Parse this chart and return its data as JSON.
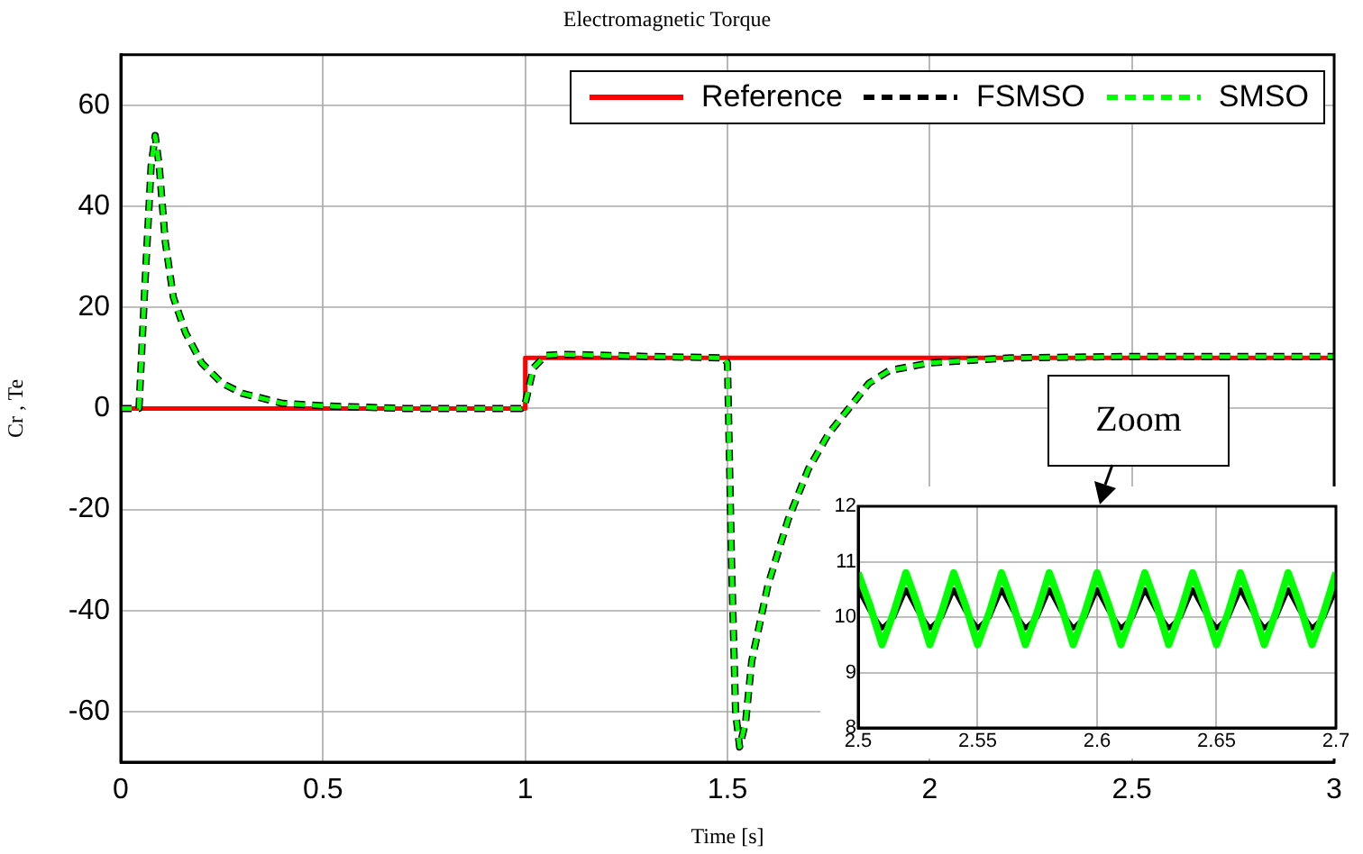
{
  "chart_data": [
    {
      "type": "line",
      "title": "Electromagnetic Torque",
      "xlabel": "Time [s]",
      "ylabel": "Cr , Te",
      "xlim": [
        0,
        3
      ],
      "xticks": [
        0,
        0.5,
        1,
        1.5,
        2,
        2.5,
        3
      ],
      "ylim": [
        -70,
        70
      ],
      "yticks": [
        -60,
        -40,
        -20,
        0,
        20,
        40,
        60
      ],
      "grid": true,
      "legend": "top right",
      "annotations": [
        "Zoom"
      ],
      "series": [
        {
          "name": "Reference",
          "color": "#ff0000",
          "line_style": "solid",
          "x": [
            0,
            1,
            1,
            1.5,
            1.5,
            3
          ],
          "values": [
            0,
            0,
            10,
            10,
            10,
            10
          ]
        },
        {
          "name": "FSMSO",
          "color": "#000000",
          "line_style": "dashed",
          "x": [
            0,
            0.045,
            0.06,
            0.075,
            0.085,
            0.095,
            0.11,
            0.13,
            0.16,
            0.2,
            0.25,
            0.3,
            0.4,
            0.5,
            0.7,
            0.99,
            1.0,
            1.02,
            1.05,
            1.1,
            1.3,
            1.49,
            1.5,
            1.51,
            1.52,
            1.53,
            1.545,
            1.56,
            1.6,
            1.65,
            1.7,
            1.75,
            1.8,
            1.85,
            1.9,
            2.0,
            2.2,
            2.5,
            3
          ],
          "values": [
            0,
            0,
            25,
            48,
            54,
            48,
            33,
            22,
            15,
            9,
            5,
            3,
            1,
            0.5,
            0,
            0,
            1,
            8,
            10.5,
            10.7,
            10.3,
            10,
            9,
            -30,
            -60,
            -67,
            -62,
            -50,
            -35,
            -22,
            -12,
            -5,
            0,
            5,
            7.5,
            9,
            10,
            10.3,
            10.3
          ]
        },
        {
          "name": "SMSO",
          "color": "#00ff00",
          "line_style": "dashed",
          "x": [
            0,
            0.045,
            0.06,
            0.075,
            0.085,
            0.095,
            0.11,
            0.13,
            0.16,
            0.2,
            0.25,
            0.3,
            0.4,
            0.5,
            0.7,
            0.99,
            1.0,
            1.02,
            1.05,
            1.1,
            1.3,
            1.49,
            1.5,
            1.51,
            1.52,
            1.53,
            1.545,
            1.56,
            1.6,
            1.65,
            1.7,
            1.75,
            1.8,
            1.85,
            1.9,
            2.0,
            2.2,
            2.5,
            3
          ],
          "values": [
            0,
            0,
            25,
            48,
            54,
            48,
            33,
            22,
            15,
            9,
            5,
            3,
            1,
            0.5,
            0,
            0,
            1,
            8,
            10.5,
            10.7,
            10.3,
            10,
            9,
            -30,
            -60,
            -67,
            -62,
            -50,
            -35,
            -22,
            -12,
            -5,
            0,
            5,
            7.5,
            9,
            10,
            10.3,
            10.3
          ]
        }
      ]
    },
    {
      "type": "line",
      "xlim": [
        2.5,
        2.7
      ],
      "xticks": [
        2.5,
        2.55,
        2.6,
        2.65,
        2.7
      ],
      "ylim": [
        8,
        12
      ],
      "yticks": [
        8,
        9,
        10,
        11,
        12
      ],
      "grid": true,
      "x": [
        2.5,
        2.505,
        2.51,
        2.515,
        2.52,
        2.525,
        2.53,
        2.535,
        2.54,
        2.545,
        2.55,
        2.555,
        2.56,
        2.565,
        2.57,
        2.575,
        2.58,
        2.585,
        2.59,
        2.595,
        2.6,
        2.605,
        2.61,
        2.615,
        2.62,
        2.625,
        2.63,
        2.635,
        2.64,
        2.645,
        2.65,
        2.655,
        2.66,
        2.665,
        2.67,
        2.675,
        2.68,
        2.685,
        2.69,
        2.695,
        2.7
      ],
      "series": [
        {
          "color": "#000000",
          "line_style": "solid",
          "values": [
            10.5,
            10.1,
            9.8,
            10.0,
            10.5,
            10.1,
            9.8,
            10.0,
            10.5,
            10.1,
            9.8,
            10.0,
            10.5,
            10.1,
            9.8,
            10.0,
            10.5,
            10.1,
            9.8,
            10.0,
            10.5,
            10.1,
            9.8,
            10.0,
            10.5,
            10.1,
            9.8,
            10.0,
            10.5,
            10.1,
            9.8,
            10.0,
            10.5,
            10.1,
            9.8,
            10.0,
            10.5,
            10.1,
            9.8,
            10.0,
            10.5
          ]
        },
        {
          "color": "#00ff00",
          "line_style": "solid",
          "values": [
            10.8,
            10.2,
            9.5,
            10.1,
            10.8,
            10.2,
            9.5,
            10.1,
            10.8,
            10.2,
            9.5,
            10.1,
            10.8,
            10.2,
            9.5,
            10.1,
            10.8,
            10.2,
            9.5,
            10.1,
            10.8,
            10.2,
            9.5,
            10.1,
            10.8,
            10.2,
            9.5,
            10.1,
            10.8,
            10.2,
            9.5,
            10.1,
            10.8,
            10.2,
            9.5,
            10.1,
            10.8,
            10.2,
            9.5,
            10.1,
            10.8
          ]
        }
      ]
    }
  ]
}
